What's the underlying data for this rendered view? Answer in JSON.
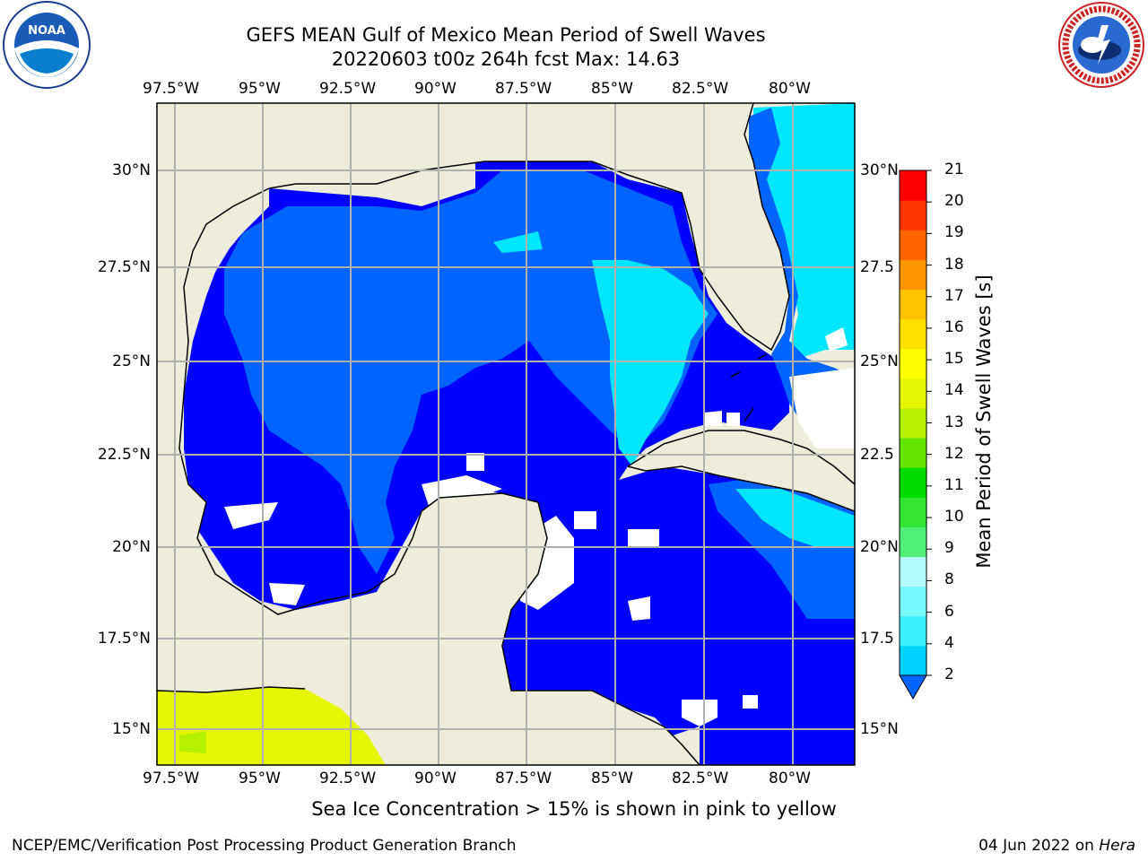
{
  "title": {
    "line1": "GEFS MEAN Gulf of Mexico Mean Period of Swell Waves",
    "line2": "20220603 t00z 264h fcst   Max: 14.63"
  },
  "logos": {
    "left": {
      "icon": "noaa-logo",
      "text": "NOAA"
    },
    "right": {
      "icon": "national-weather-service-logo"
    }
  },
  "map": {
    "lon_labels": [
      "97.5°W",
      "95°W",
      "92.5°W",
      "90°W",
      "87.5°W",
      "85°W",
      "82.5°W",
      "80°W"
    ],
    "lat_labels_left": [
      "30°N",
      "27.5°N",
      "25°N",
      "22.5°N",
      "20°N",
      "17.5°N",
      "15°N"
    ],
    "lat_labels_right": [
      "30°N",
      "27.5",
      "25°N",
      "22.5",
      "20°N",
      "17.5",
      "15°N"
    ],
    "colors": {
      "land": "#eeeddc",
      "no_data": "#ffffff",
      "grid": "#b0b0b0",
      "coast": "#000000"
    }
  },
  "colorbar": {
    "label": "Mean Period of Swell Waves [s]",
    "ticks": [
      "2",
      "4",
      "6",
      "8",
      "9",
      "10",
      "11",
      "12",
      "13",
      "14",
      "15",
      "16",
      "17",
      "18",
      "19",
      "20",
      "21"
    ],
    "colors": [
      "#0064ff",
      "#00d2ff",
      "#3cf0ff",
      "#78f8ff",
      "#b4fcff",
      "#50f078",
      "#32e632",
      "#00dc00",
      "#64e600",
      "#b4f000",
      "#e6f500",
      "#ffff00",
      "#ffe100",
      "#ffc300",
      "#ff9600",
      "#ff6400",
      "#ff3200",
      "#ff0000"
    ]
  },
  "caption": "Sea Ice Concentration > 15% is shown in pink to yellow",
  "footer": {
    "left": "NCEP/EMC/Verification Post Processing Product Generation Branch",
    "right_date": "04 Jun 2022 on ",
    "right_host": "Hera"
  }
}
